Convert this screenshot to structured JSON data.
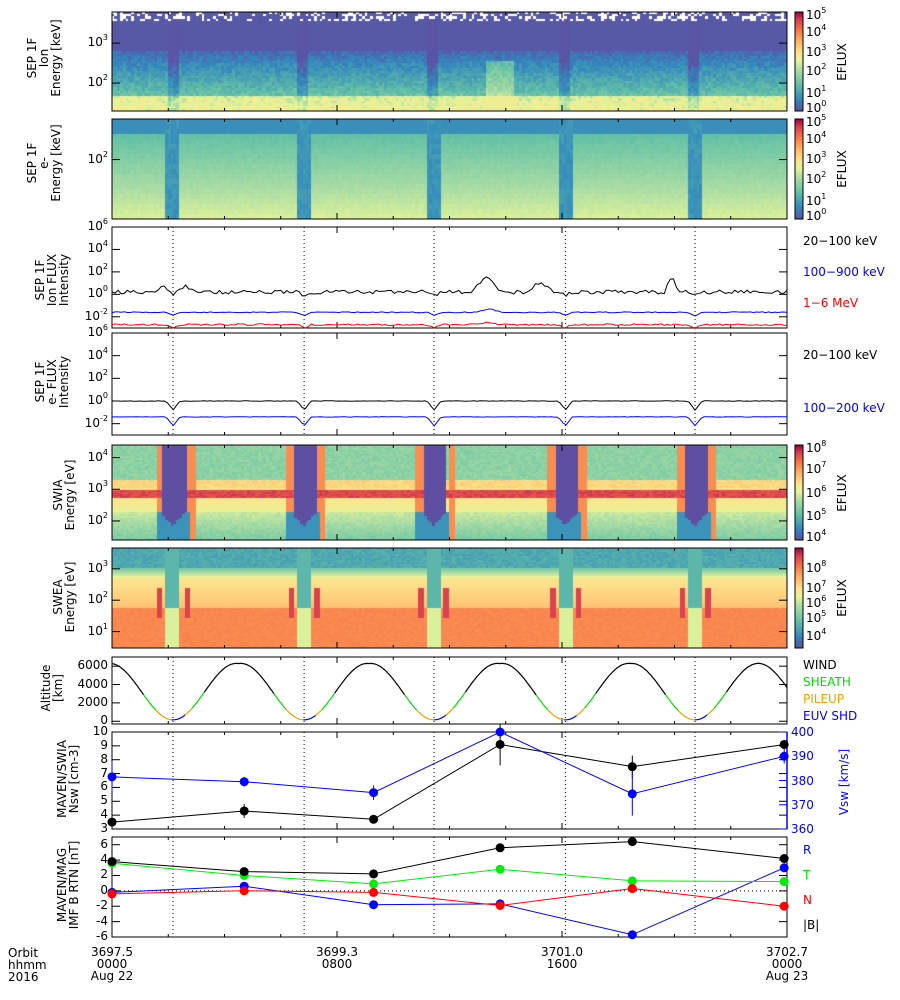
{
  "chart_data": [
    {
      "type": "heatmap",
      "id": "sep-ion",
      "ylabel_lines": [
        "SEP 1F",
        "Ion",
        "Energy [keV]"
      ],
      "yscale": "log",
      "ylim": [
        20,
        6000
      ],
      "yticks": [
        {
          "v": 100,
          "label": "10",
          "exp": "2"
        },
        {
          "v": 1000,
          "label": "10",
          "exp": "3"
        }
      ],
      "colorbar": {
        "label": "EFLUX",
        "range_log": [
          0,
          5
        ],
        "ticks": [
          {
            "label": "10",
            "exp": "5"
          },
          {
            "label": "10",
            "exp": "4"
          },
          {
            "label": "10",
            "exp": "3"
          },
          {
            "label": "10",
            "exp": "2"
          },
          {
            "label": "10",
            "exp": "1"
          },
          {
            "label": "10",
            "exp": "0"
          }
        ]
      }
    },
    {
      "type": "heatmap",
      "id": "sep-e",
      "ylabel_lines": [
        "SEP 1F",
        "e-",
        "Energy [keV]"
      ],
      "yscale": "log",
      "ylim": [
        20,
        300
      ],
      "yticks": [
        {
          "v": 100,
          "label": "10",
          "exp": "2"
        }
      ],
      "colorbar": {
        "label": "EFLUX",
        "range_log": [
          0,
          5
        ],
        "ticks": [
          {
            "label": "10",
            "exp": "5"
          },
          {
            "label": "10",
            "exp": "4"
          },
          {
            "label": "10",
            "exp": "3"
          },
          {
            "label": "10",
            "exp": "2"
          },
          {
            "label": "10",
            "exp": "1"
          },
          {
            "label": "10",
            "exp": "0"
          }
        ]
      }
    },
    {
      "type": "line",
      "id": "sep-ion-flux",
      "ylabel_lines": [
        "SEP 1F",
        "Ion FLUX",
        "Intensity"
      ],
      "yscale": "log",
      "ylim_log": [
        -3,
        6
      ],
      "yticks": [
        {
          "label": "10",
          "exp": "6"
        },
        {
          "label": "10",
          "exp": "4"
        },
        {
          "label": "10",
          "exp": "2"
        },
        {
          "label": "10",
          "exp": "0"
        },
        {
          "label": "10",
          "exp": "-2"
        }
      ],
      "series": [
        {
          "name": "20-100 keV",
          "color": "#000000",
          "base_log": 0.2
        },
        {
          "name": "100-900 keV",
          "color": "#0000ff",
          "base_log": -1.6
        },
        {
          "name": "1-6 MeV",
          "color": "#ff0000",
          "base_log": -2.7
        }
      ]
    },
    {
      "type": "line",
      "id": "sep-e-flux",
      "ylabel_lines": [
        "SEP 1F",
        "e- FLUX",
        "Intensity"
      ],
      "yscale": "log",
      "ylim_log": [
        -3,
        6
      ],
      "yticks": [
        {
          "label": "10",
          "exp": "6"
        },
        {
          "label": "10",
          "exp": "4"
        },
        {
          "label": "10",
          "exp": "2"
        },
        {
          "label": "10",
          "exp": "0"
        },
        {
          "label": "10",
          "exp": "-2"
        }
      ],
      "series": [
        {
          "name": "20-100 keV",
          "color": "#000000",
          "base_log": 0.0
        },
        {
          "name": "100-200 keV",
          "color": "#0000ff",
          "base_log": -1.4
        }
      ]
    },
    {
      "type": "heatmap",
      "id": "swia",
      "ylabel_lines": [
        "SWIA",
        "Energy [eV]"
      ],
      "yscale": "log",
      "ylim": [
        25,
        25000
      ],
      "yticks": [
        {
          "label": "10",
          "exp": "4"
        },
        {
          "label": "10",
          "exp": "3"
        },
        {
          "label": "10",
          "exp": "2"
        }
      ],
      "colorbar": {
        "label": "EFLUX",
        "range_log": [
          4,
          8
        ],
        "ticks": [
          {
            "label": "10",
            "exp": "8"
          },
          {
            "label": "10",
            "exp": "7"
          },
          {
            "label": "10",
            "exp": "6"
          },
          {
            "label": "10",
            "exp": "5"
          },
          {
            "label": "10",
            "exp": "4"
          }
        ]
      }
    },
    {
      "type": "heatmap",
      "id": "swea",
      "ylabel_lines": [
        "SWEA",
        "Energy [eV]"
      ],
      "yscale": "log",
      "ylim": [
        3,
        4600
      ],
      "yticks": [
        {
          "label": "10",
          "exp": "3"
        },
        {
          "label": "10",
          "exp": "2"
        },
        {
          "label": "10",
          "exp": "1"
        }
      ],
      "colorbar": {
        "label": "EFLUX",
        "range_log": [
          3.2,
          9
        ],
        "ticks": [
          {
            "label": "10",
            "exp": "8"
          },
          {
            "label": "10",
            "exp": "7"
          },
          {
            "label": "10",
            "exp": "6"
          },
          {
            "label": "10",
            "exp": "5"
          },
          {
            "label": "10",
            "exp": "4"
          }
        ]
      }
    },
    {
      "type": "line",
      "id": "altitude",
      "ylabel_lines": [
        "Altitude",
        "[km]"
      ],
      "ylim": [
        -300,
        7000
      ],
      "yticks": [
        {
          "v": 6000,
          "label": "6000"
        },
        {
          "v": 4000,
          "label": "4000"
        },
        {
          "v": 2000,
          "label": "2000"
        },
        {
          "v": 0,
          "label": "0"
        }
      ],
      "apoapsis_km": 6300,
      "periapsis_km": 150,
      "orbit_period_h": 4.5,
      "legend": [
        {
          "name": "WIND",
          "color": "#000000"
        },
        {
          "name": "SHEATH",
          "color": "#00dd00"
        },
        {
          "name": "PILEUP",
          "color": "#f0a000"
        },
        {
          "name": "EUV SHD",
          "color": "#0000ff"
        }
      ]
    },
    {
      "type": "line",
      "id": "nsw-vsw",
      "ylabel_lines": [
        "MAVEN/SWIA",
        "Nsw [cm-3]"
      ],
      "ylim": [
        3,
        10
      ],
      "yticks": [
        {
          "v": 10,
          "label": "10"
        },
        {
          "v": 9,
          "label": "9"
        },
        {
          "v": 8,
          "label": "8"
        },
        {
          "v": 7,
          "label": "7"
        },
        {
          "v": 6,
          "label": "6"
        },
        {
          "v": 5,
          "label": "5"
        },
        {
          "v": 4,
          "label": "4"
        },
        {
          "v": 3,
          "label": "3"
        }
      ],
      "y2label": "Vsw [km/s]",
      "y2lim": [
        360,
        400
      ],
      "y2ticks": [
        {
          "v": 400,
          "label": "400"
        },
        {
          "v": 390,
          "label": "390"
        },
        {
          "v": 380,
          "label": "380"
        },
        {
          "v": 370,
          "label": "370"
        },
        {
          "v": 360,
          "label": "360"
        }
      ],
      "x_hours": [
        0,
        4.7,
        9.3,
        13.8,
        18.5,
        23.9
      ],
      "series": [
        {
          "name": "Nsw",
          "color": "#000000",
          "values": [
            3.5,
            4.3,
            3.7,
            9.1,
            7.5,
            9.1
          ],
          "err": [
            0,
            0.5,
            0.2,
            1.5,
            0.8,
            0
          ]
        },
        {
          "name": "Vsw",
          "color": "#0000ff",
          "axis": "right",
          "values": [
            381.5,
            379.5,
            375,
            400,
            374.5,
            390
          ],
          "err": [
            6,
            2,
            3,
            0,
            9,
            3
          ]
        }
      ]
    },
    {
      "type": "line",
      "id": "mag",
      "ylabel_lines": [
        "MAVEN/MAG",
        "IMF B RTN [nT]"
      ],
      "ylim": [
        -6,
        7
      ],
      "yticks": [
        {
          "v": 6,
          "label": "6"
        },
        {
          "v": 4,
          "label": "4"
        },
        {
          "v": 2,
          "label": "2"
        },
        {
          "v": 0,
          "label": "0"
        },
        {
          "v": -2,
          "label": "-2"
        },
        {
          "v": -4,
          "label": "-4"
        },
        {
          "v": -6,
          "label": "-6"
        }
      ],
      "x_hours": [
        0,
        4.7,
        9.3,
        13.8,
        18.5,
        23.9
      ],
      "series": [
        {
          "name": "R",
          "color": "#0000ff",
          "values": [
            -0.2,
            0.6,
            -1.8,
            -1.7,
            -5.7,
            3.0
          ]
        },
        {
          "name": "T",
          "color": "#00ee00",
          "values": [
            3.6,
            2.0,
            0.9,
            2.8,
            1.3,
            1.2
          ]
        },
        {
          "name": "N",
          "color": "#ff0000",
          "values": [
            -0.4,
            0.0,
            -0.2,
            -1.9,
            0.3,
            -2.0
          ]
        },
        {
          "name": "|B|",
          "color": "#000000",
          "values": [
            3.8,
            2.5,
            2.2,
            5.6,
            6.4,
            4.2
          ]
        }
      ]
    }
  ],
  "x_axis": {
    "range_hours": [
      0,
      24
    ],
    "row_labels": [
      "Orbit",
      "hhmm",
      "2016"
    ],
    "ticks": [
      {
        "hours": 0,
        "orbit": "3697.5",
        "hhmm": "0000",
        "date": "Aug 22"
      },
      {
        "hours": 8,
        "orbit": "3699.3",
        "hhmm": "0800",
        "date": ""
      },
      {
        "hours": 16,
        "orbit": "3701.0",
        "hhmm": "1600",
        "date": ""
      },
      {
        "hours": 24,
        "orbit": "3702.7",
        "hhmm": "0000",
        "date": "Aug 23"
      }
    ],
    "periapsis_hours": [
      2.17,
      6.83,
      11.45,
      16.12,
      20.73
    ]
  }
}
